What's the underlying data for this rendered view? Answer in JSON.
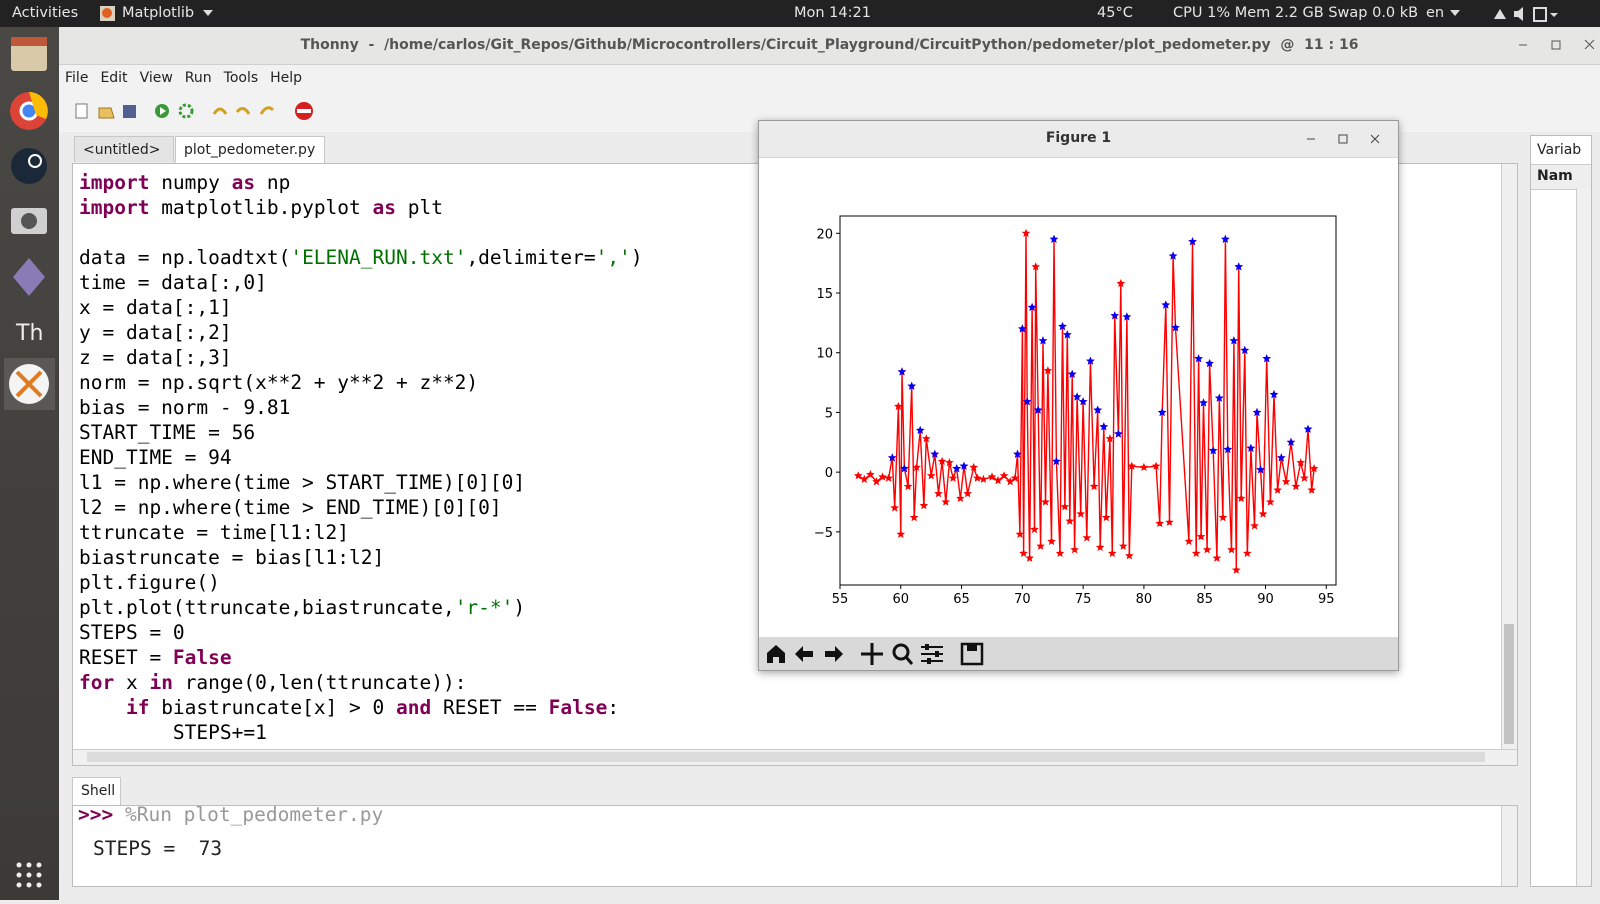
{
  "top_bar": {
    "activities": "Activities",
    "app": "Matplotlib",
    "clock": "Mon 14:21",
    "temperature": "45°C",
    "system": "CPU 1% Mem 2.2 GB Swap 0.0 kB",
    "language": "en"
  },
  "window": {
    "title": "Thonny  -  /home/carlos/Git_Repos/Github/Microcontrollers/Circuit_Playground/CircuitPython/pedometer/plot_pedometer.py  @  11 : 16"
  },
  "menu": [
    "File",
    "Edit",
    "View",
    "Run",
    "Tools",
    "Help"
  ],
  "tabs": [
    "<untitled>",
    "plot_pedometer.py"
  ],
  "code": [
    [
      {
        "text": "import",
        "style": "keyword"
      },
      {
        "text": " numpy ",
        "style": "plain"
      },
      {
        "text": "as",
        "style": "keyword"
      },
      {
        "text": " np",
        "style": "plain"
      }
    ],
    [
      {
        "text": "import",
        "style": "keyword"
      },
      {
        "text": " matplotlib.pyplot ",
        "style": "plain"
      },
      {
        "text": "as",
        "style": "keyword"
      },
      {
        "text": " plt",
        "style": "plain"
      }
    ],
    [],
    [
      {
        "text": "data = np.loadtxt(",
        "style": "plain"
      },
      {
        "text": "'ELENA_RUN.txt'",
        "style": "string"
      },
      {
        "text": ",delimiter=",
        "style": "plain"
      },
      {
        "text": "','",
        "style": "string"
      },
      {
        "text": ")",
        "style": "plain"
      }
    ],
    [
      {
        "text": "time = data[:,0]",
        "style": "plain"
      }
    ],
    [
      {
        "text": "x = data[:,1]",
        "style": "plain"
      }
    ],
    [
      {
        "text": "y = data[:,2]",
        "style": "plain"
      }
    ],
    [
      {
        "text": "z = data[:,3]",
        "style": "plain"
      }
    ],
    [
      {
        "text": "norm = np.sqrt(x**2 + y**2 + z**2)",
        "style": "plain"
      }
    ],
    [
      {
        "text": "bias = norm - 9.81",
        "style": "plain"
      }
    ],
    [
      {
        "text": "START_TIME = 56",
        "style": "plain"
      }
    ],
    [
      {
        "text": "END_TIME = 94",
        "style": "plain"
      }
    ],
    [
      {
        "text": "l1 = np.where(time > START_TIME)[0][0]",
        "style": "plain"
      }
    ],
    [
      {
        "text": "l2 = np.where(time > END_TIME)[0][0]",
        "style": "plain"
      }
    ],
    [
      {
        "text": "ttruncate = time[l1:l2]",
        "style": "plain"
      }
    ],
    [
      {
        "text": "biastruncate = bias[l1:l2]",
        "style": "plain"
      }
    ],
    [
      {
        "text": "plt.figure()",
        "style": "plain"
      }
    ],
    [
      {
        "text": "plt.plot(ttruncate,biastruncate,",
        "style": "plain"
      },
      {
        "text": "'r-*'",
        "style": "string"
      },
      {
        "text": ")",
        "style": "plain"
      }
    ],
    [
      {
        "text": "STEPS = 0",
        "style": "plain"
      }
    ],
    [
      {
        "text": "RESET = ",
        "style": "plain"
      },
      {
        "text": "False",
        "style": "keyword"
      }
    ],
    [
      {
        "text": "for",
        "style": "keyword"
      },
      {
        "text": " x ",
        "style": "plain"
      },
      {
        "text": "in",
        "style": "keyword"
      },
      {
        "text": " range(0,len(ttruncate)):",
        "style": "plain"
      }
    ],
    [
      {
        "text": "    ",
        "style": "plain"
      },
      {
        "text": "if",
        "style": "keyword"
      },
      {
        "text": " biastruncate[x] > 0 ",
        "style": "plain"
      },
      {
        "text": "and",
        "style": "keyword"
      },
      {
        "text": " RESET == ",
        "style": "plain"
      },
      {
        "text": "False",
        "style": "keyword"
      },
      {
        "text": ":",
        "style": "plain"
      }
    ],
    [
      {
        "text": "        STEPS+=1",
        "style": "plain"
      }
    ]
  ],
  "shell": {
    "tab": "Shell",
    "prompt": ">>>",
    "command": "%Run plot_pedometer.py",
    "output": "STEPS =  73"
  },
  "variables": {
    "title": "Variab",
    "column": "Nam"
  },
  "figure": {
    "title": "Figure 1"
  },
  "chart_data": {
    "type": "line",
    "xlim": [
      55,
      95.8
    ],
    "ylim": [
      -9.45,
      21.45
    ],
    "xticks": [
      55,
      60,
      65,
      70,
      75,
      80,
      85,
      90,
      95
    ],
    "yticks": [
      {
        "value": -5,
        "label": "−5"
      },
      0,
      5,
      10,
      15,
      20
    ],
    "series": [
      {
        "color": "#ff0000",
        "marker": "star",
        "line": true,
        "x": [
          56.5,
          57,
          57.5,
          58,
          58.5,
          59,
          59.3,
          59.5,
          59.8,
          60,
          60.1,
          60.3,
          60.6,
          60.9,
          61.1,
          61.3,
          61.6,
          61.9,
          62.1,
          62.5,
          62.8,
          63.1,
          63.4,
          63.7,
          64,
          64.3,
          64.6,
          64.9,
          65.2,
          65.5,
          66,
          66.3,
          66.8,
          67.5,
          68,
          68.5,
          69,
          69.4,
          69.6,
          69.8,
          70,
          70.1,
          70.3,
          70.4,
          70.6,
          70.8,
          71,
          71.1,
          71.3,
          71.5,
          71.7,
          71.9,
          72.1,
          72.4,
          72.6,
          72.8,
          73.1,
          73.3,
          73.5,
          73.7,
          73.9,
          74.1,
          74.3,
          74.5,
          74.8,
          75,
          75.3,
          75.6,
          75.9,
          76.2,
          76.4,
          76.7,
          76.9,
          77.2,
          77.4,
          77.6,
          77.9,
          78.1,
          78.3,
          78.6,
          78.8,
          79,
          80,
          81,
          81.3,
          81.5,
          81.8,
          82.1,
          82.4,
          82.6,
          83.7,
          84,
          84.3,
          84.5,
          84.7,
          84.9,
          85.2,
          85.4,
          85.7,
          86,
          86.2,
          86.5,
          86.7,
          86.9,
          87.2,
          87.4,
          87.6,
          87.8,
          88,
          88.3,
          88.5,
          88.8,
          89.1,
          89.3,
          89.6,
          89.8,
          90.1,
          90.4,
          90.7,
          91,
          91.3,
          91.7,
          92.1,
          92.5,
          92.9,
          93.2,
          93.5,
          93.8,
          94
        ],
        "values": [
          -0.3,
          -0.6,
          -0.2,
          -0.8,
          -0.4,
          -0.5,
          1.2,
          -3,
          5.5,
          -5.2,
          8.4,
          0.3,
          -1.2,
          7.2,
          -3.8,
          0.4,
          3.5,
          -2.8,
          2.8,
          -0.3,
          1.5,
          -1.8,
          0.9,
          -2.5,
          0.8,
          -0.5,
          0.3,
          -2.2,
          0.5,
          -1.8,
          0.4,
          -0.5,
          -0.6,
          -0.4,
          -0.7,
          -0.3,
          -0.8,
          -0.5,
          1.5,
          -5.2,
          12,
          -6.8,
          20,
          5.9,
          -7.2,
          13.8,
          -4.8,
          17.2,
          5.2,
          -6.2,
          11,
          -2.5,
          8.5,
          -5.8,
          19.5,
          0.9,
          -6.8,
          12.2,
          -2.9,
          11.5,
          -4.1,
          8.2,
          -6.5,
          6.3,
          -3.5,
          5.9,
          -5.5,
          9.3,
          -1.2,
          5.2,
          -6.3,
          3.8,
          -3.8,
          2.8,
          -6.8,
          13.1,
          3.2,
          15.8,
          -6.2,
          13,
          -7,
          0.5,
          0.4,
          0.5,
          -4.3,
          5,
          14,
          -4.2,
          18.1,
          12.1,
          -5.8,
          19.3,
          -6.8,
          9.5,
          -5.4,
          5.8,
          -6.5,
          9.1,
          1.8,
          -7.2,
          6.2,
          -3.8,
          19.5,
          1.9,
          -6.5,
          11,
          -8.2,
          17.2,
          -2.2,
          10.2,
          -6.8,
          2,
          -4.5,
          5,
          0.2,
          -3.5,
          9.5,
          -2.5,
          6.5,
          -1.5,
          1.2,
          -0.8,
          2.5,
          -1.2,
          0.8,
          -0.5,
          3.6,
          -1.5,
          0.3
        ]
      },
      {
        "color": "#0000ff",
        "marker": "star",
        "line": false,
        "x": [
          59.3,
          60.1,
          60.3,
          60.9,
          61.6,
          62.8,
          64.6,
          65.2,
          69.6,
          70,
          70.4,
          70.8,
          71.3,
          71.7,
          72.6,
          72.8,
          73.3,
          73.7,
          74.1,
          74.5,
          75,
          75.6,
          76.2,
          76.7,
          77.6,
          77.9,
          78.6,
          81.5,
          81.8,
          82.4,
          82.6,
          84,
          84.5,
          84.9,
          85.4,
          85.7,
          86.2,
          86.7,
          86.9,
          87.4,
          87.8,
          88.3,
          88.8,
          89.3,
          89.6,
          90.1,
          90.7,
          91.3,
          92.1,
          93.5
        ],
        "values": [
          1.2,
          8.4,
          0.3,
          7.2,
          3.5,
          1.5,
          0.3,
          0.5,
          1.5,
          12,
          5.9,
          13.8,
          5.2,
          11,
          19.5,
          0.9,
          12.2,
          11.5,
          8.2,
          6.3,
          5.9,
          9.3,
          5.2,
          3.8,
          13.1,
          3.2,
          13,
          5,
          14,
          18.1,
          12.1,
          19.3,
          9.5,
          5.8,
          9.1,
          1.8,
          6.2,
          19.5,
          1.9,
          11,
          17.2,
          10.2,
          2,
          5,
          0.2,
          9.5,
          6.5,
          1.2,
          2.5,
          3.6
        ]
      }
    ]
  }
}
